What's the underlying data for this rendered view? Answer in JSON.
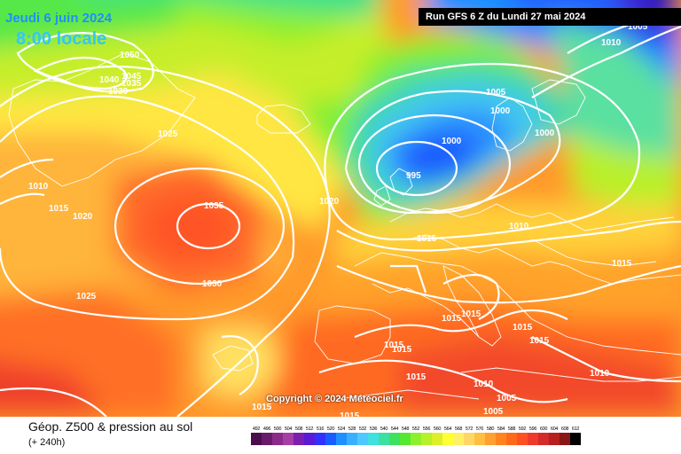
{
  "header": {
    "date": "Jeudi 6 juin 2024",
    "time": "8:00 locale",
    "run": "Run GFS 6 Z du Lundi 27 mai 2024"
  },
  "copyright": "Copyright © 2024 Météociel.fr",
  "footer": {
    "caption": "Géop. Z500 & pression au sol",
    "subcaption": "(+ 240h)"
  },
  "legend": {
    "values": [
      "492",
      "496",
      "500",
      "504",
      "508",
      "512",
      "516",
      "520",
      "524",
      "528",
      "532",
      "536",
      "540",
      "544",
      "548",
      "552",
      "556",
      "560",
      "564",
      "568",
      "572",
      "576",
      "580",
      "584",
      "588",
      "592",
      "596",
      "600",
      "604",
      "608",
      "612"
    ],
    "colors": [
      "#4b0d4b",
      "#6a1a6a",
      "#8a2b8a",
      "#a63ea6",
      "#7a1fb0",
      "#5a1bd6",
      "#3030ff",
      "#1a5cff",
      "#1e90ff",
      "#39b0ff",
      "#4fc8ff",
      "#3fe0e0",
      "#3ce0a0",
      "#3ee060",
      "#55e830",
      "#8ef02a",
      "#b8f02a",
      "#dcf028",
      "#ffff33",
      "#fff066",
      "#ffd766",
      "#ffbf40",
      "#ffa030",
      "#ff8420",
      "#ff6a1a",
      "#ff5024",
      "#ee3a2a",
      "#d42a2a",
      "#b51f1f",
      "#8a1515",
      "#000000"
    ]
  },
  "isobars": [
    {
      "value": "1050"
    },
    {
      "value": "1045"
    },
    {
      "value": "1040"
    },
    {
      "value": "1035"
    },
    {
      "value": "1030"
    },
    {
      "value": "1025"
    },
    {
      "value": "1010"
    },
    {
      "value": "1015"
    },
    {
      "value": "1020"
    },
    {
      "value": "1035"
    },
    {
      "value": "1030"
    },
    {
      "value": "1025"
    },
    {
      "value": "1020"
    },
    {
      "value": "1015"
    },
    {
      "value": "1005"
    },
    {
      "value": "1000"
    },
    {
      "value": "1000"
    },
    {
      "value": "995"
    },
    {
      "value": "1000"
    },
    {
      "value": "1010"
    },
    {
      "value": "1010"
    },
    {
      "value": "1005"
    },
    {
      "value": "1015"
    },
    {
      "value": "1015"
    },
    {
      "value": "1015"
    },
    {
      "value": "1015"
    },
    {
      "value": "1015"
    },
    {
      "value": "1015"
    },
    {
      "value": "1015"
    },
    {
      "value": "1010"
    },
    {
      "value": "1005"
    },
    {
      "value": "1005"
    },
    {
      "value": "1015"
    },
    {
      "value": "1010"
    },
    {
      "value": "1015"
    },
    {
      "value": "1015"
    }
  ]
}
